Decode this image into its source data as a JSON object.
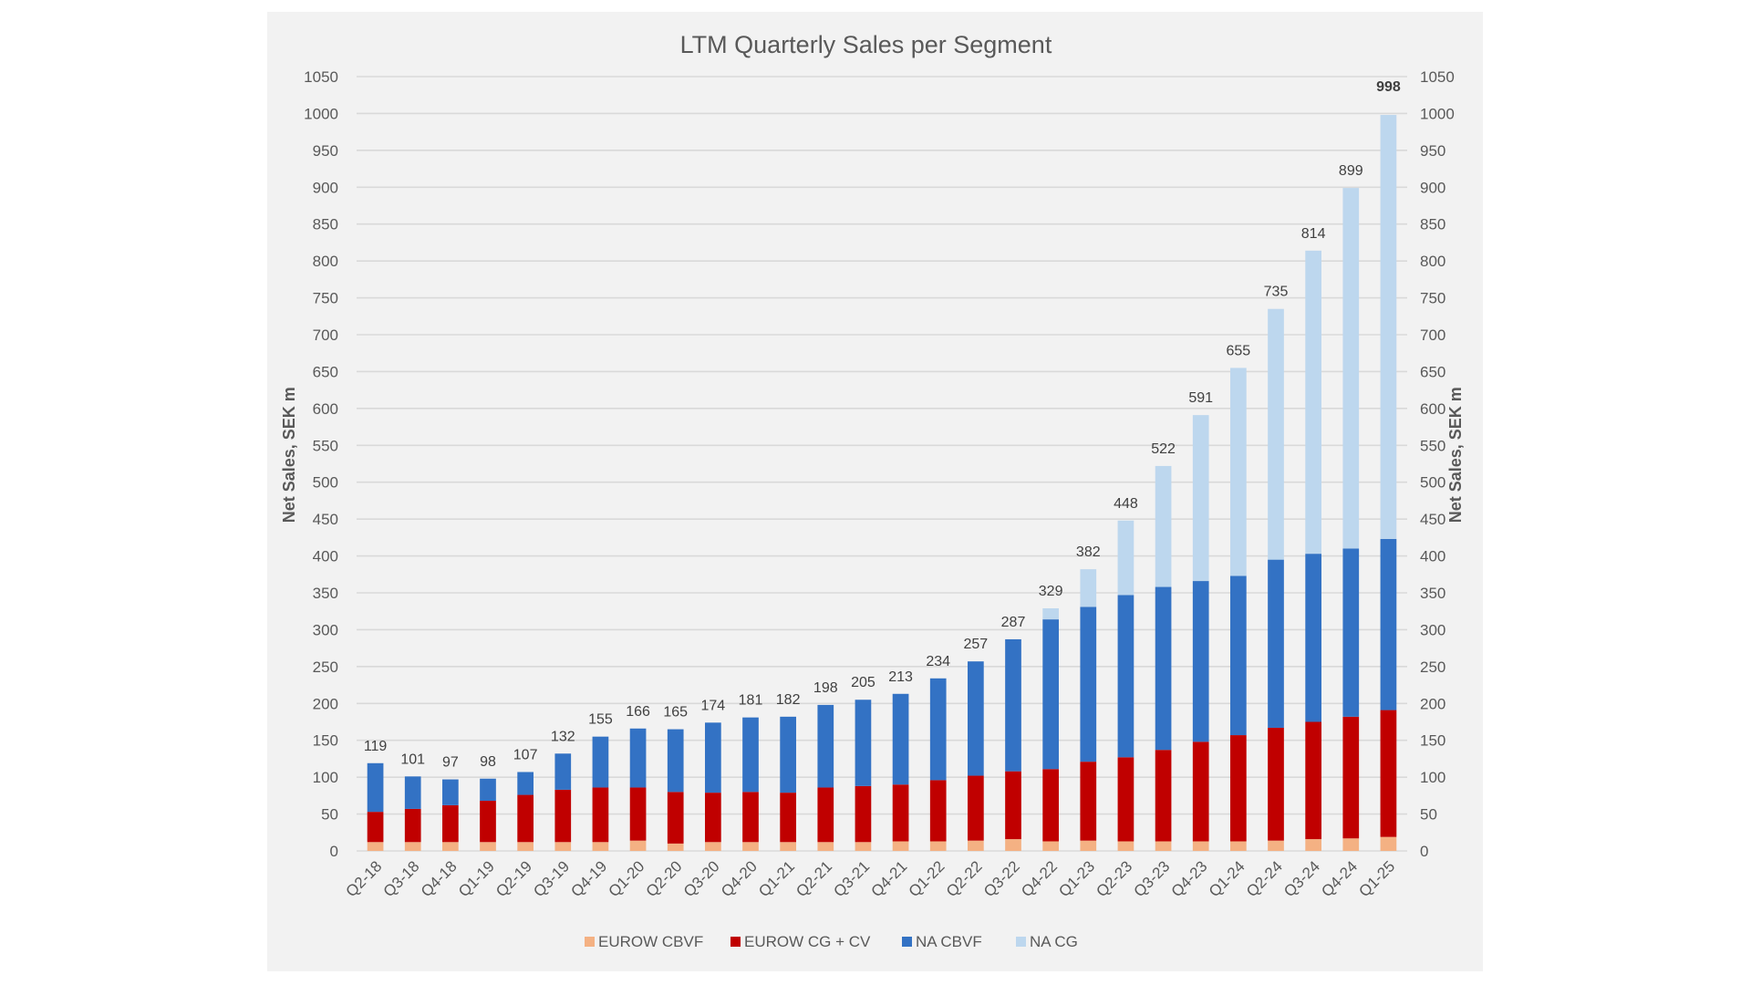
{
  "chart_data": {
    "type": "bar",
    "stacked": true,
    "title": "LTM Quarterly Sales per Segment",
    "xlabel": "",
    "ylabel": "Net Sales, SEK m",
    "ylabel_right": "Net Sales, SEK m",
    "ylim": [
      0,
      1050
    ],
    "ytick_step": 50,
    "yticks": [
      0,
      50,
      100,
      150,
      200,
      250,
      300,
      350,
      400,
      450,
      500,
      550,
      600,
      650,
      700,
      750,
      800,
      850,
      900,
      950,
      1000,
      1050
    ],
    "grid": true,
    "legend_position": "bottom",
    "categories": [
      "Q2-18",
      "Q3-18",
      "Q4-18",
      "Q1-19",
      "Q2-19",
      "Q3-19",
      "Q4-19",
      "Q1-20",
      "Q2-20",
      "Q3-20",
      "Q4-20",
      "Q1-21",
      "Q2-21",
      "Q3-21",
      "Q4-21",
      "Q1-22",
      "Q2-22",
      "Q3-22",
      "Q4-22",
      "Q1-23",
      "Q2-23",
      "Q3-23",
      "Q4-23",
      "Q1-24",
      "Q2-24",
      "Q3-24",
      "Q4-24",
      "Q1-25"
    ],
    "series": [
      {
        "name": "EUROW CBVF",
        "color": "#f4b183",
        "values": [
          12,
          12,
          12,
          12,
          12,
          12,
          12,
          14,
          10,
          12,
          12,
          12,
          12,
          12,
          13,
          13,
          14,
          16,
          13,
          14,
          13,
          13,
          13,
          13,
          14,
          16,
          17,
          19
        ]
      },
      {
        "name": "EUROW CG + CV",
        "color": "#c00000",
        "values": [
          41,
          45,
          50,
          56,
          64,
          71,
          74,
          72,
          70,
          67,
          68,
          67,
          74,
          76,
          77,
          83,
          88,
          92,
          98,
          107,
          114,
          124,
          135,
          144,
          153,
          159,
          165,
          172
        ]
      },
      {
        "name": "NA CBVF",
        "color": "#3372c4",
        "values": [
          66,
          44,
          35,
          30,
          31,
          49,
          69,
          80,
          85,
          95,
          101,
          103,
          112,
          117,
          123,
          138,
          155,
          179,
          203,
          210,
          220,
          221,
          218,
          216,
          228,
          228,
          228,
          232
        ]
      },
      {
        "name": "NA CG",
        "color": "#bdd7ee",
        "values": [
          0,
          0,
          0,
          0,
          0,
          0,
          0,
          0,
          0,
          0,
          0,
          0,
          0,
          0,
          0,
          0,
          0,
          0,
          15,
          51,
          101,
          164,
          225,
          282,
          340,
          411,
          489,
          575
        ]
      }
    ],
    "totals": [
      119,
      101,
      97,
      98,
      107,
      132,
      155,
      166,
      165,
      174,
      181,
      182,
      198,
      205,
      213,
      234,
      257,
      287,
      329,
      382,
      448,
      522,
      591,
      655,
      735,
      814,
      899,
      998
    ],
    "highlighted_total": "998"
  }
}
